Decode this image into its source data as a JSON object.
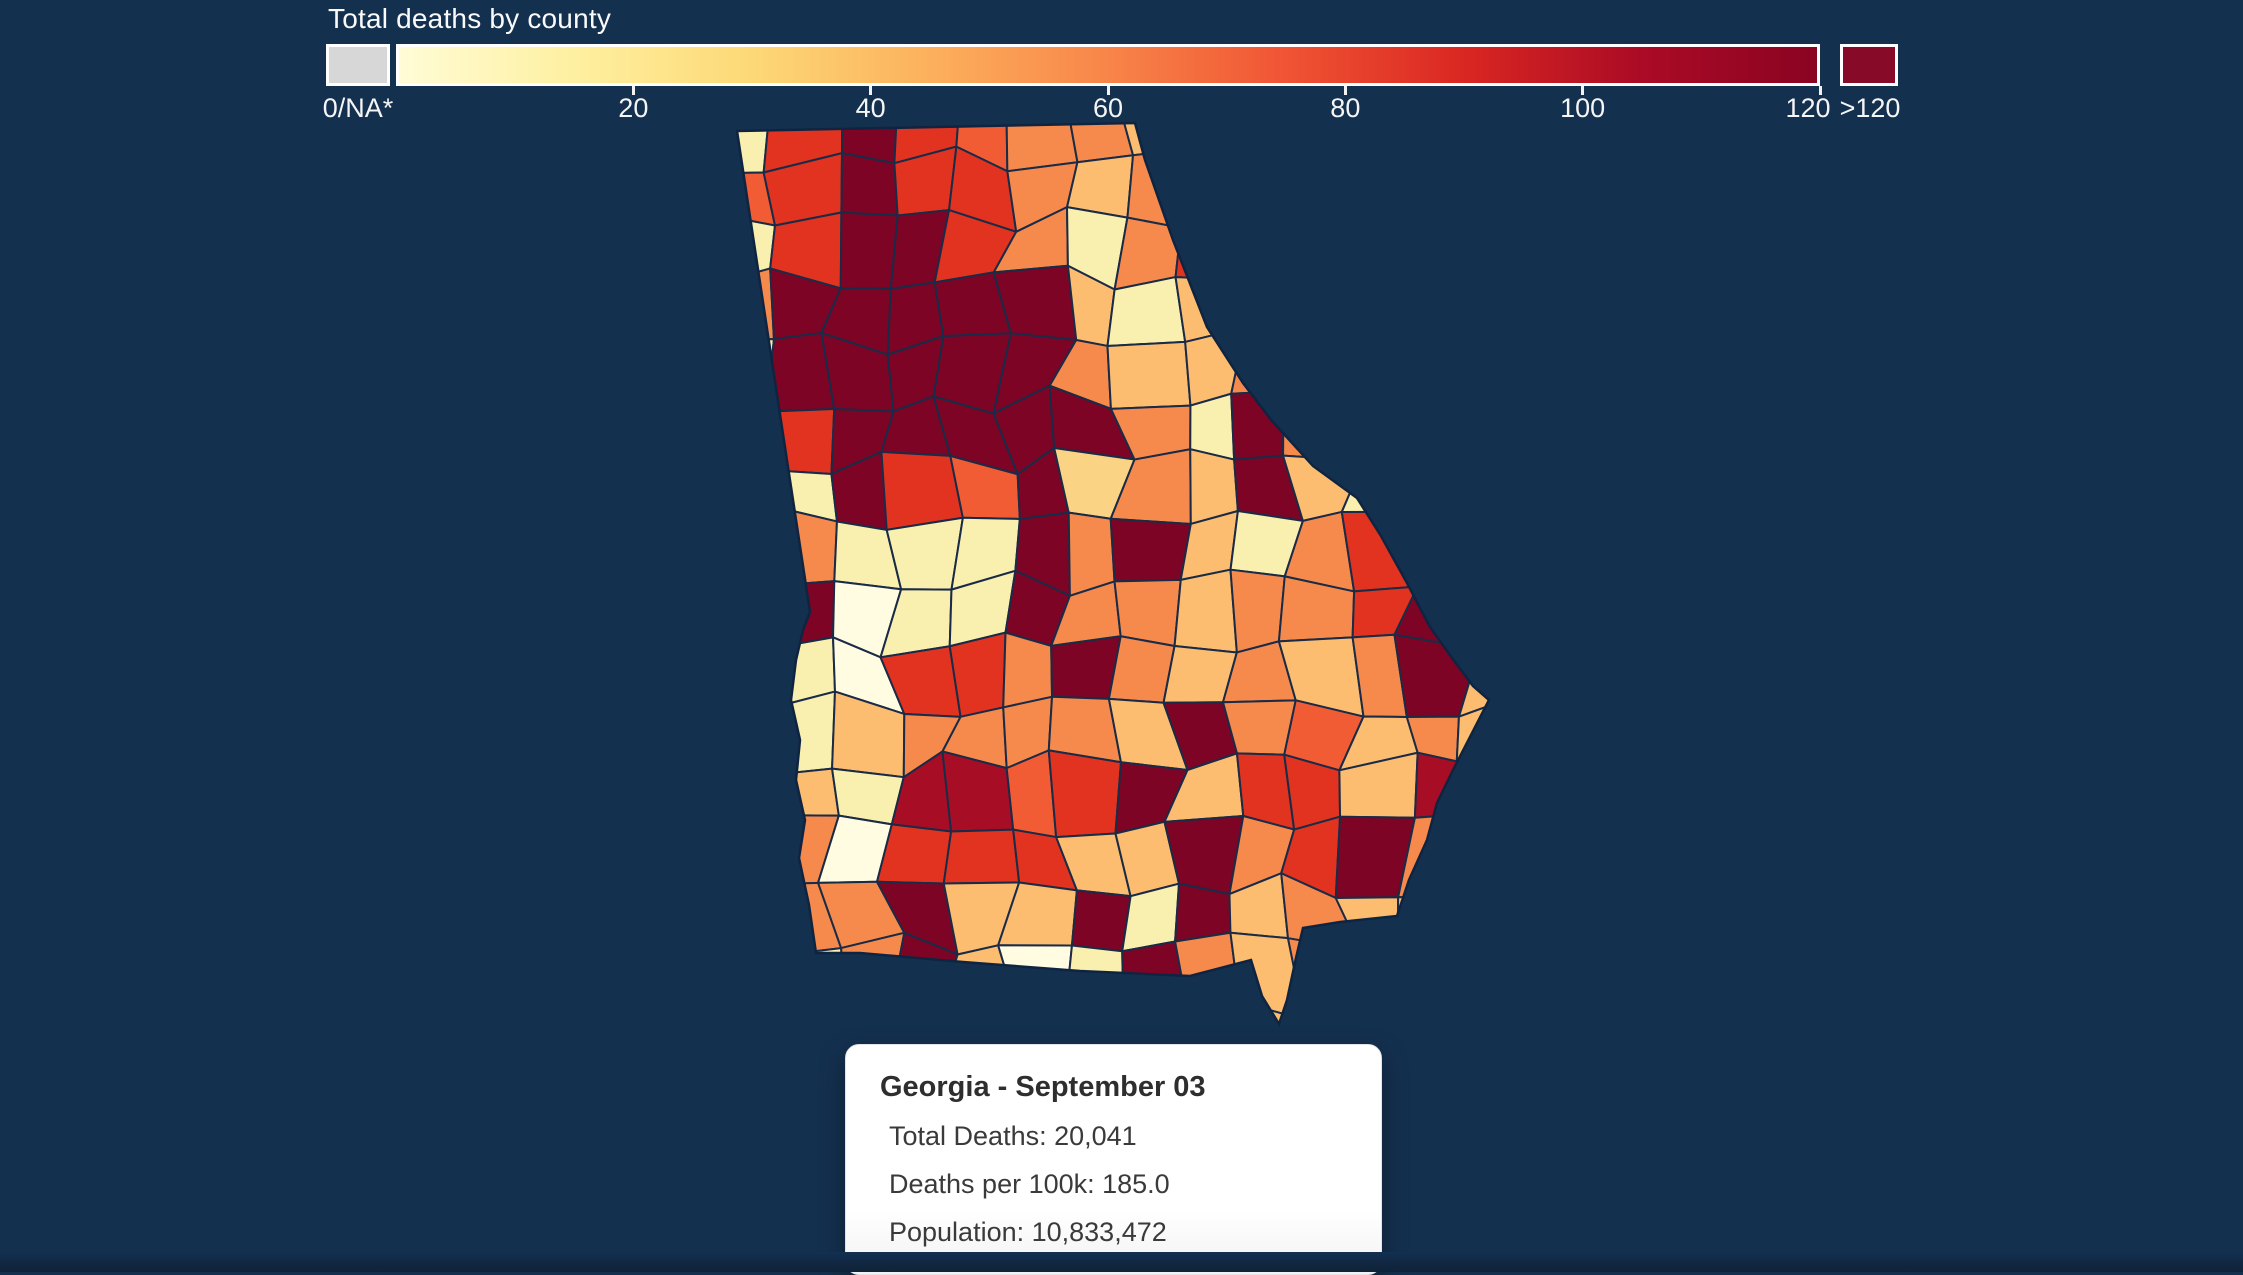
{
  "background": {
    "page": "#14304f",
    "bottom_bar": "#112741"
  },
  "legend": {
    "title": "Total deaths by county",
    "na_label": "0/NA*",
    "na_color": "#d7d7d7",
    "tick_values": [
      20,
      40,
      60,
      80,
      100,
      120
    ],
    "ticks": [
      "20",
      "40",
      "60",
      "80",
      "100",
      "120"
    ],
    "overflow_label": ">120",
    "overflow_color": "#870a28",
    "domain": [
      0,
      120
    ],
    "gradient": [
      "#fffcd6",
      "#fef0a0",
      "#fdd876",
      "#fcb05c",
      "#f88549",
      "#f05434",
      "#da2722",
      "#ab0b25",
      "#8a0322"
    ]
  },
  "tooltip": {
    "title": "Georgia - September 03",
    "lines": [
      "Total Deaths: 20,041",
      "Deaths per 100k: 185.0",
      "Population: 10,833,472"
    ]
  },
  "chart_data": {
    "type": "choropleth",
    "title": "Total deaths by county",
    "geography": "Georgia (USA), colored by county",
    "color_scale": {
      "palette_family": "YlOrRd sequential",
      "domain": [
        0,
        120
      ],
      "ticks": [
        20,
        40,
        60,
        80,
        100,
        120
      ],
      "overflow_bucket": ">120",
      "na_bucket": "0/NA*",
      "legend_position": "top"
    },
    "summary": {
      "region": "Georgia",
      "date_label": "September 03",
      "total_deaths": 20041,
      "deaths_per_100k": 185.0,
      "population": 10833472
    },
    "notes": "Dark maroon (>120 deaths) cluster across north-central / metro-Atlanta counties; reds in the northwest; oranges and pale yellows across middle, eastern and southern counties with scattered dark counties near Augusta, the coast and the south."
  },
  "map": {
    "palette": [
      "#fffce1",
      "#f9efae",
      "#fbd385",
      "#fcbd70",
      "#f68a4d",
      "#f25c35",
      "#e13320",
      "#a80d26",
      "#7d0425"
    ],
    "border_color": "#1a2b47",
    "outline_color": "#0f2440",
    "grid": [
      "16865443333333",
      "56866434333333",
      "16886414633333",
      "48888831343333",
      "18888843344333",
      "16888884184333",
      "41865824383133",
      "14111848314673",
      "18011844344683",
      "11066484343483",
      "11344443845343",
      "13177568366373",
      "14066633846843",
      "14483381834333",
      "11483018434333",
      "33333333333333"
    ]
  }
}
